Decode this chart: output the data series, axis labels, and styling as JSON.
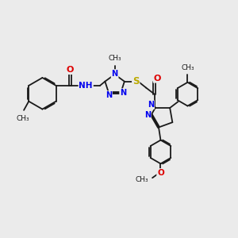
{
  "bg_color": "#ebebeb",
  "bond_color": "#1a1a1a",
  "bond_width": 1.3,
  "atom_colors": {
    "N": "#0000ee",
    "O": "#dd0000",
    "S": "#bbaa00",
    "default": "#1a1a1a"
  },
  "font_size": 7.5,
  "fig_size": [
    3.0,
    3.0
  ],
  "dpi": 100,
  "xlim": [
    0,
    12
  ],
  "ylim": [
    0,
    12
  ]
}
